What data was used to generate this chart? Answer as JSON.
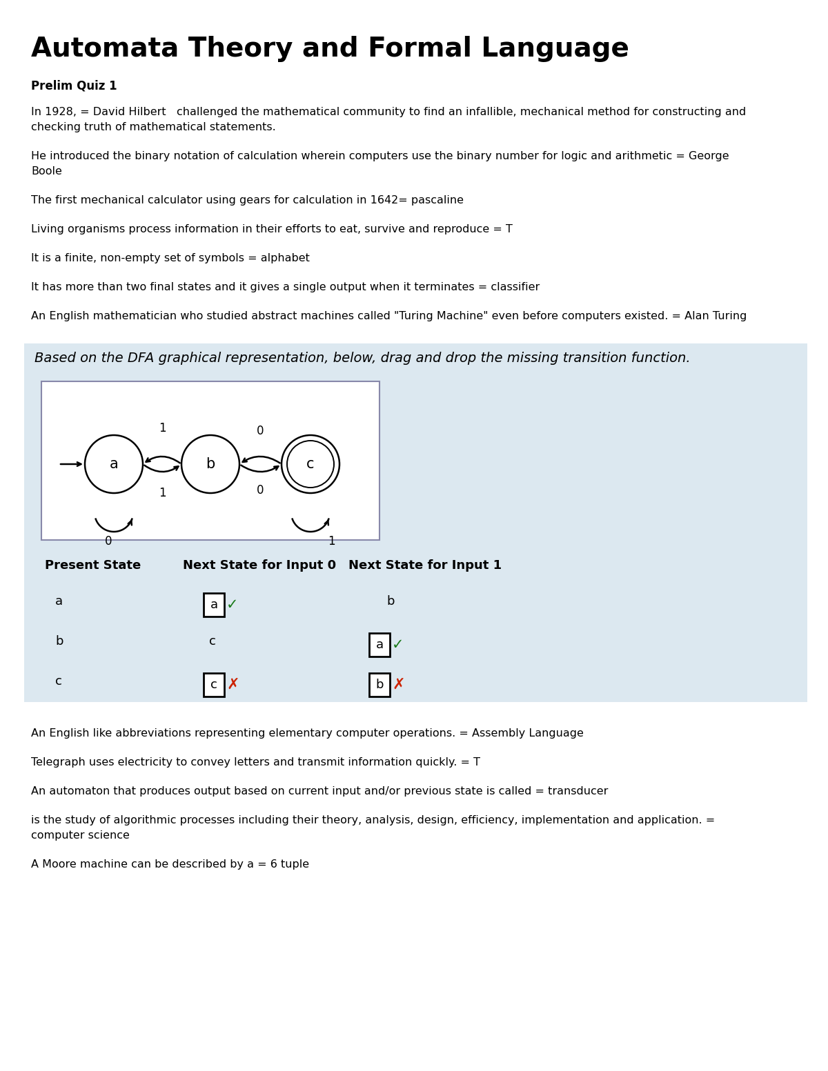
{
  "title": "Automata Theory and Formal Language",
  "subtitle": "Prelim Quiz 1",
  "questions": [
    "In 1928, = David Hilbert   challenged the mathematical community to find an infallible, mechanical method for constructing and\nchecking truth of mathematical statements.",
    "He introduced the binary notation of calculation wherein computers use the binary number for logic and arithmetic = George\nBoole",
    "The first mechanical calculator using gears for calculation in 1642= pascaline",
    "Living organisms process information in their efforts to eat, survive and reproduce = T",
    "It is a finite, non-empty set of symbols = alphabet",
    "It has more than two final states and it gives a single output when it terminates = classifier",
    "An English mathematician who studied abstract machines called \"Turing Machine\" even before computers existed. = Alan Turing"
  ],
  "dfa_instruction": "Based on the DFA graphical representation, below, drag and drop the missing transition function.",
  "table_headers": [
    "Present State",
    "Next State for Input 0",
    "Next State for Input 1"
  ],
  "table_rows": [
    [
      "a",
      "a",
      "b"
    ],
    [
      "b",
      "c",
      "a"
    ],
    [
      "c",
      "c",
      "b"
    ]
  ],
  "bottom_questions": [
    "An English like abbreviations representing elementary computer operations. = Assembly Language",
    "Telegraph uses electricity to convey letters and transmit information quickly. = T",
    "An automaton that produces output based on current input and/or previous state is called = transducer",
    "is the study of algorithmic processes including their theory, analysis, design, efficiency, implementation and application. =\ncomputer science",
    "A Moore machine can be described by a = 6 tuple"
  ],
  "bg_color": "#ffffff",
  "dfa_bg_color": "#dce8f0",
  "title_fontsize": 28,
  "subtitle_fontsize": 12,
  "body_fontsize": 11.5,
  "dfa_instruction_fontsize": 14
}
